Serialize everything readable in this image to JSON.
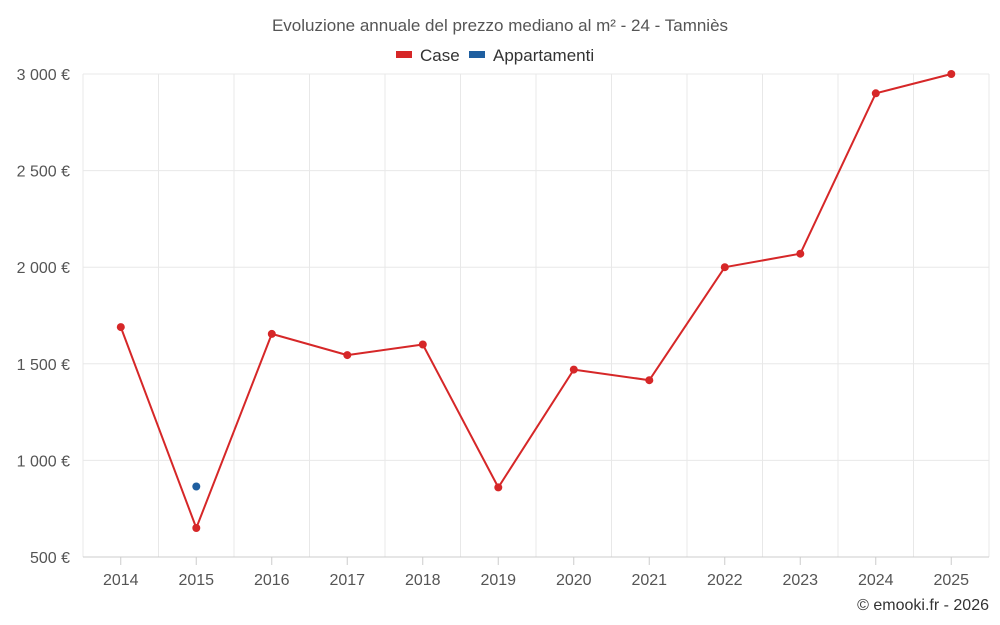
{
  "chart_data": {
    "type": "line",
    "title": "Evoluzione annuale del prezzo mediano al m² - 24 - Tamniès",
    "categories": [
      "2014",
      "2015",
      "2016",
      "2017",
      "2018",
      "2019",
      "2020",
      "2021",
      "2022",
      "2023",
      "2024",
      "2025"
    ],
    "ylim": [
      500,
      3000
    ],
    "yticks": [
      500,
      1000,
      1500,
      2000,
      2500,
      3000
    ],
    "ytick_labels": [
      "500 €",
      "1 000 €",
      "1 500 €",
      "2 000 €",
      "2 500 €",
      "3 000 €"
    ],
    "grid": true,
    "legend_position": "top-center",
    "series": [
      {
        "name": "Case",
        "color": "#d62728",
        "values": [
          1690,
          650,
          1655,
          1545,
          1600,
          860,
          1470,
          1415,
          2000,
          2070,
          2900,
          3000
        ]
      },
      {
        "name": "Appartamenti",
        "color": "#1f5fa0",
        "values": [
          null,
          865,
          null,
          null,
          null,
          null,
          null,
          null,
          null,
          null,
          null,
          null
        ]
      }
    ]
  },
  "credit": "© emooki.fr - 2026"
}
